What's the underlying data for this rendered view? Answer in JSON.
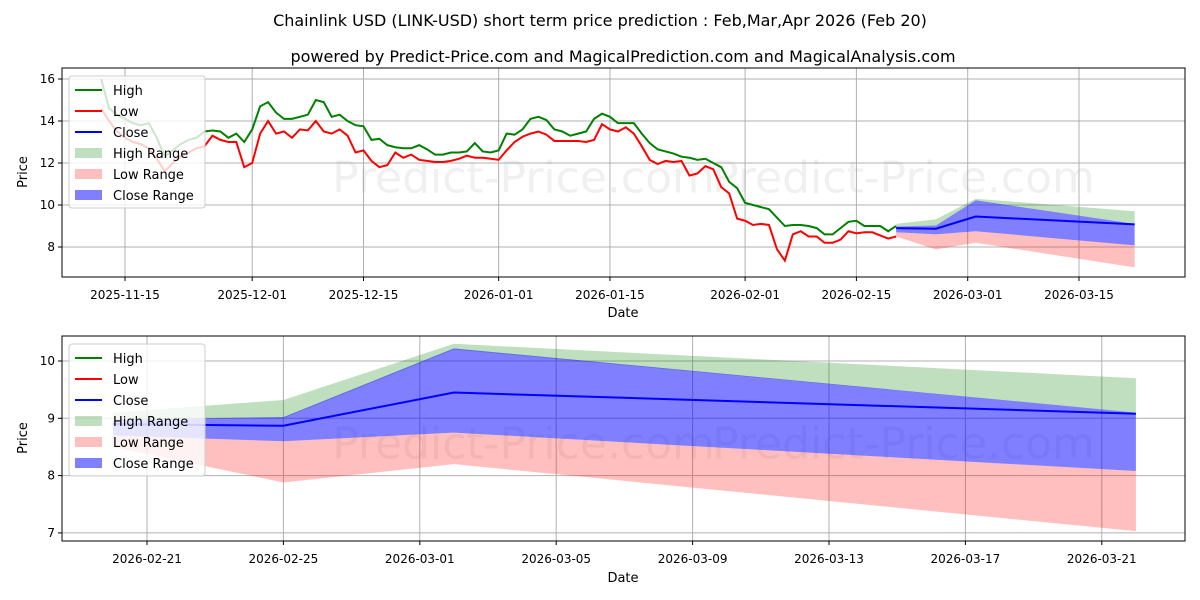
{
  "chart_data": [
    {
      "type": "line",
      "title": "Chainlink USD (LINK-USD) short term price prediction : Feb,Mar,Apr 2026 (Feb 20)",
      "subtitle": "powered by Predict-Price.com and MagicalPrediction.com and MagicalAnalysis.com",
      "xlabel": "Date",
      "ylabel": "Price",
      "ylim": [
        6.6,
        16.4
      ],
      "grid": true,
      "legend_position": "top-left",
      "x_ticks": [
        "2025-11-15",
        "2025-12-01",
        "2025-12-15",
        "2026-01-01",
        "2026-01-15",
        "2026-02-01",
        "2026-02-15",
        "2026-03-01",
        "2026-03-15"
      ],
      "y_ticks": [
        8,
        10,
        12,
        14,
        16
      ],
      "history_start": "2025-11-12",
      "high": [
        16.0,
        14.6,
        14.3,
        14.1,
        13.9,
        13.8,
        13.9,
        13.2,
        12.3,
        12.6,
        12.9,
        13.1,
        13.2,
        13.5,
        13.55,
        13.5,
        13.2,
        13.4,
        13.0,
        13.6,
        14.7,
        14.9,
        14.4,
        14.1,
        14.1,
        14.2,
        14.3,
        15.0,
        14.9,
        14.2,
        14.3,
        14.0,
        13.8,
        13.75,
        13.1,
        13.15,
        12.85,
        12.75,
        12.7,
        12.7,
        12.85,
        12.65,
        12.4,
        12.4,
        12.5,
        12.5,
        12.55,
        12.95,
        12.55,
        12.5,
        12.6,
        13.4,
        13.35,
        13.6,
        14.1,
        14.2,
        14.05,
        13.6,
        13.5,
        13.3,
        13.4,
        13.5,
        14.1,
        14.35,
        14.2,
        13.9,
        13.9,
        13.9,
        13.4,
        12.95,
        12.65,
        12.55,
        12.45,
        12.3,
        12.25,
        12.15,
        12.2,
        12.0,
        11.8,
        11.1,
        10.8,
        10.1,
        10.0,
        9.9,
        9.8,
        9.4,
        9.0,
        9.05,
        9.05,
        9.0,
        8.9,
        8.6,
        8.6,
        8.9,
        9.2,
        9.25,
        9.0,
        9.0,
        9.0,
        8.75,
        9.0
      ],
      "low": [
        14.6,
        14.0,
        13.5,
        13.2,
        13.0,
        12.9,
        12.7,
        12.2,
        11.6,
        12.0,
        12.3,
        12.5,
        12.7,
        12.8,
        13.3,
        13.1,
        13.0,
        13.0,
        11.8,
        12.0,
        13.4,
        14.0,
        13.4,
        13.5,
        13.2,
        13.6,
        13.55,
        14.0,
        13.5,
        13.4,
        13.6,
        13.3,
        12.5,
        12.6,
        12.1,
        11.8,
        11.9,
        12.5,
        12.25,
        12.4,
        12.15,
        12.1,
        12.05,
        12.05,
        12.1,
        12.2,
        12.35,
        12.25,
        12.25,
        12.2,
        12.15,
        12.6,
        13.0,
        13.25,
        13.4,
        13.5,
        13.35,
        13.05,
        13.05,
        13.05,
        13.05,
        13.0,
        13.1,
        13.85,
        13.6,
        13.5,
        13.7,
        13.4,
        12.8,
        12.15,
        11.95,
        12.1,
        12.05,
        12.1,
        11.4,
        11.5,
        11.85,
        11.7,
        10.85,
        10.55,
        9.35,
        9.25,
        9.05,
        9.1,
        9.05,
        7.9,
        7.35,
        8.6,
        8.75,
        8.5,
        8.5,
        8.2,
        8.2,
        8.35,
        8.75,
        8.65,
        8.7,
        8.7,
        8.55,
        8.4,
        8.5
      ]
    },
    {
      "type": "area",
      "xlabel": "Date",
      "ylabel": "Price",
      "ylim": [
        6.8,
        10.45
      ],
      "grid": true,
      "legend_position": "top-left",
      "x_ticks": [
        "2026-02-21",
        "2026-02-25",
        "2026-03-01",
        "2026-03-05",
        "2026-03-09",
        "2026-03-13",
        "2026-03-17",
        "2026-03-21"
      ],
      "y_ticks": [
        7,
        8,
        9,
        10
      ],
      "forecast_dates": [
        "2026-02-20",
        "2026-02-25",
        "2026-03-02",
        "2026-03-22"
      ],
      "close": [
        8.9,
        8.87,
        9.45,
        9.08
      ],
      "high_range": {
        "upper": [
          9.1,
          9.32,
          10.3,
          9.7
        ],
        "lower": [
          9.0,
          9.0,
          10.2,
          9.1
        ]
      },
      "close_range": {
        "upper": [
          8.98,
          9.02,
          10.22,
          9.1
        ],
        "lower": [
          8.7,
          8.6,
          8.75,
          8.08
        ]
      },
      "low_range": {
        "upper": [
          8.7,
          8.6,
          8.75,
          8.08
        ],
        "lower": [
          8.5,
          7.88,
          8.2,
          7.03
        ]
      }
    }
  ],
  "legend": [
    "High",
    "Low",
    "Close",
    "High Range",
    "Low Range",
    "Close Range"
  ],
  "watermark": "Predict-Price.com",
  "colors": {
    "high": "#008000",
    "low": "#ff0000",
    "close": "#0000ff",
    "high_range": "#c0e0c0",
    "low_range": "#ffc0c0",
    "close_range": "#8080ff"
  }
}
